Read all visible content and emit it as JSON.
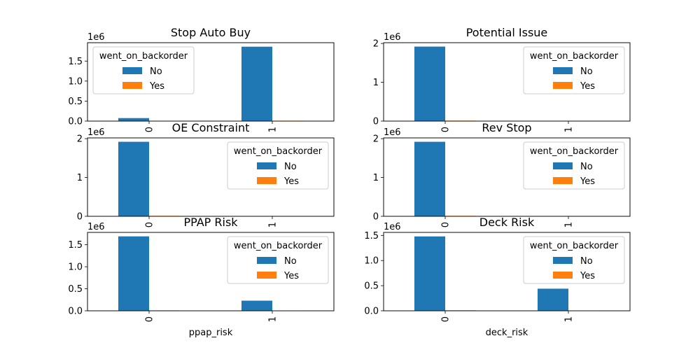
{
  "legend": {
    "title": "went_on_backorder",
    "entries": [
      {
        "label": "No",
        "color": "#1f77b4"
      },
      {
        "label": "Yes",
        "color": "#ff7f0e"
      }
    ]
  },
  "chart_data": [
    {
      "type": "bar",
      "title": "Stop Auto Buy",
      "xlabel": "",
      "categories": [
        "0",
        "1"
      ],
      "series": [
        {
          "name": "No",
          "values": [
            75000,
            1860000
          ]
        },
        {
          "name": "Yes",
          "values": [
            2000,
            11000
          ]
        }
      ],
      "ylim": [
        0,
        1960000
      ],
      "yticks": [
        0,
        500000,
        1000000,
        1500000
      ],
      "ytick_labels": [
        "0.0",
        "0.5",
        "1.0",
        "1.5"
      ],
      "offset_label": "1e6",
      "legend_position": "upper-left"
    },
    {
      "type": "bar",
      "title": "Potential Issue",
      "xlabel": "",
      "categories": [
        "0",
        "1"
      ],
      "series": [
        {
          "name": "No",
          "values": [
            1920000,
            1000
          ]
        },
        {
          "name": "Yes",
          "values": [
            13000,
            0
          ]
        }
      ],
      "ylim": [
        0,
        2020000
      ],
      "yticks": [
        0,
        1000000,
        2000000
      ],
      "ytick_labels": [
        "0",
        "1",
        "2"
      ],
      "offset_label": "1e6",
      "legend_position": "upper-right"
    },
    {
      "type": "bar",
      "title": "OE Constraint",
      "xlabel": "",
      "categories": [
        "0",
        "1"
      ],
      "series": [
        {
          "name": "No",
          "values": [
            1920000,
            200
          ]
        },
        {
          "name": "Yes",
          "values": [
            13000,
            0
          ]
        }
      ],
      "ylim": [
        0,
        2020000
      ],
      "yticks": [
        0,
        1000000,
        2000000
      ],
      "ytick_labels": [
        "0",
        "1",
        "2"
      ],
      "offset_label": "1e6",
      "legend_position": "upper-right"
    },
    {
      "type": "bar",
      "title": "Rev Stop",
      "xlabel": "",
      "categories": [
        "0",
        "1"
      ],
      "series": [
        {
          "name": "No",
          "values": [
            1920000,
            800
          ]
        },
        {
          "name": "Yes",
          "values": [
            13000,
            0
          ]
        }
      ],
      "ylim": [
        0,
        2020000
      ],
      "yticks": [
        0,
        1000000,
        2000000
      ],
      "ytick_labels": [
        "0",
        "1",
        "2"
      ],
      "offset_label": "1e6",
      "legend_position": "upper-right"
    },
    {
      "type": "bar",
      "title": "PPAP Risk",
      "xlabel": "ppap_risk",
      "categories": [
        "0",
        "1"
      ],
      "series": [
        {
          "name": "No",
          "values": [
            1690000,
            230000
          ]
        },
        {
          "name": "Yes",
          "values": [
            11000,
            2000
          ]
        }
      ],
      "ylim": [
        0,
        1780000
      ],
      "yticks": [
        0,
        500000,
        1000000,
        1500000
      ],
      "ytick_labels": [
        "0.0",
        "0.5",
        "1.0",
        "1.5"
      ],
      "offset_label": "1e6",
      "legend_position": "upper-right"
    },
    {
      "type": "bar",
      "title": "Deck Risk",
      "xlabel": "deck_risk",
      "categories": [
        "0",
        "1"
      ],
      "series": [
        {
          "name": "No",
          "values": [
            1480000,
            440000
          ]
        },
        {
          "name": "Yes",
          "values": [
            11000,
            2500
          ]
        }
      ],
      "ylim": [
        0,
        1560000
      ],
      "yticks": [
        0,
        500000,
        1000000,
        1500000
      ],
      "ytick_labels": [
        "0.0",
        "0.5",
        "1.0",
        "1.5"
      ],
      "offset_label": "1e6",
      "legend_position": "upper-right"
    }
  ]
}
